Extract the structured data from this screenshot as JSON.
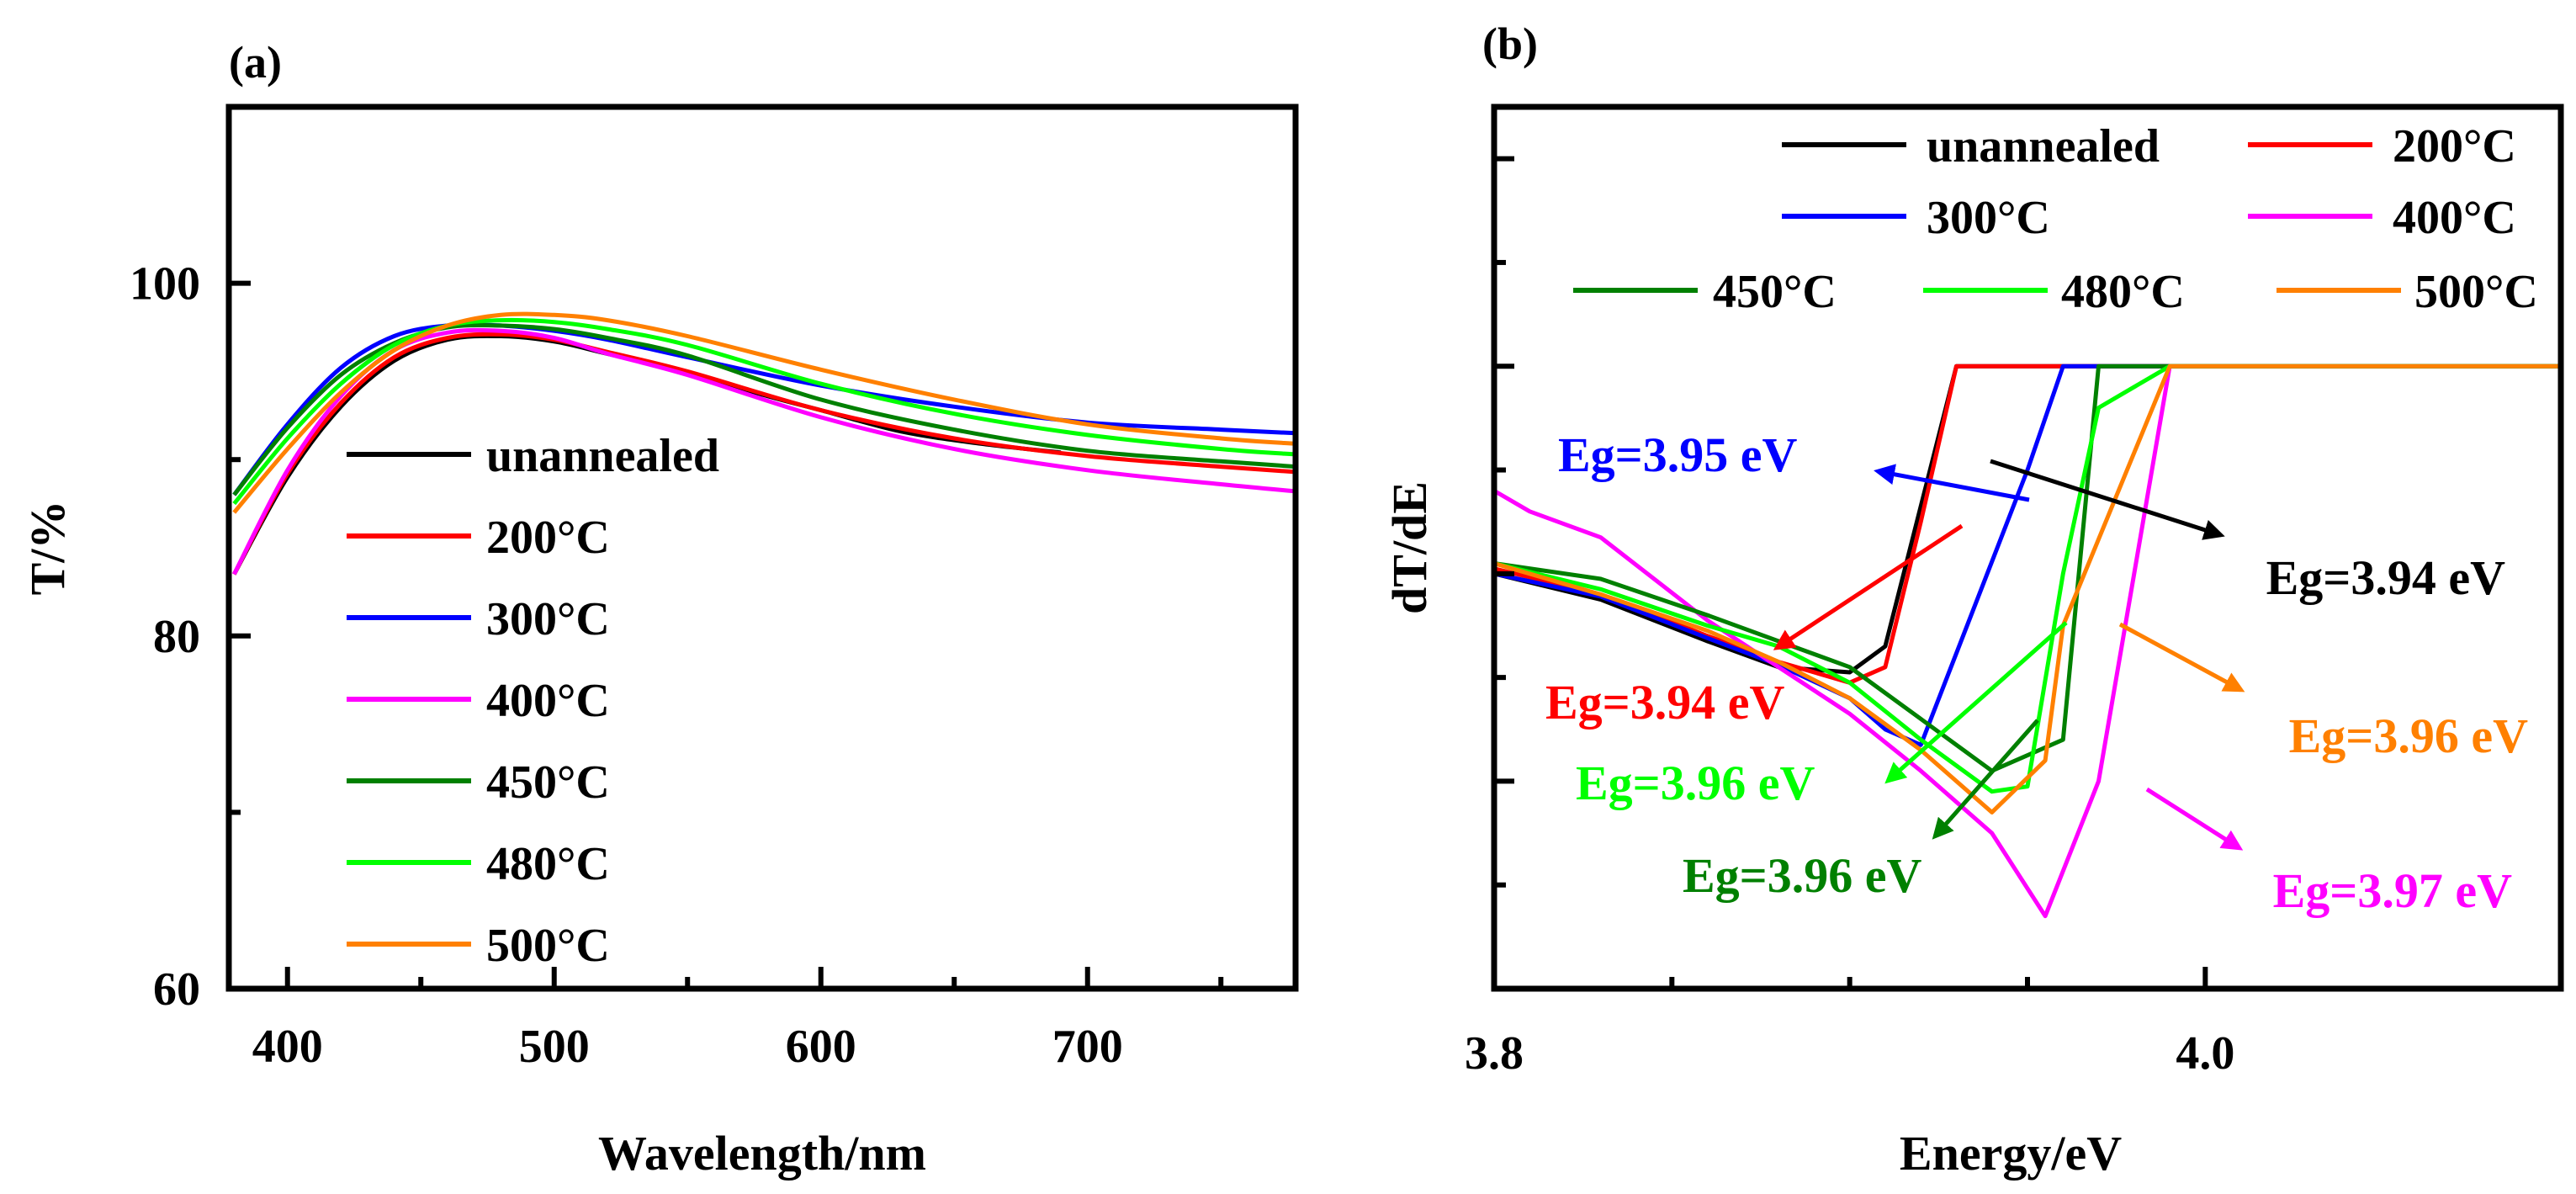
{
  "chart_data": [
    {
      "panel": "(a)",
      "type": "line",
      "xlabel": "Wavelength/nm",
      "ylabel": "T/%",
      "xlim": [
        378,
        778
      ],
      "ylim": [
        60,
        110
      ],
      "xticks": [
        400,
        500,
        600,
        700
      ],
      "xtick_labels": [
        "400",
        "500",
        "600",
        "700"
      ],
      "yticks": [
        60,
        80,
        100
      ],
      "ytick_labels": [
        "60",
        "80",
        "100"
      ],
      "legend_position": "bottom-left",
      "series": [
        {
          "name": "unannealed",
          "color": "#000000",
          "x": [
            380,
            400,
            420,
            440,
            460,
            480,
            500,
            520,
            550,
            580,
            600,
            630,
            660,
            690
          ],
          "y": [
            83.5,
            89.0,
            93.0,
            95.6,
            96.8,
            97.0,
            96.7,
            96.0,
            94.9,
            93.6,
            92.8,
            91.6,
            90.9,
            90.4
          ]
        },
        {
          "name": "200°C",
          "color": "#ff0000",
          "x": [
            380,
            400,
            420,
            440,
            460,
            480,
            500,
            520,
            550,
            600,
            650,
            700,
            750,
            778
          ],
          "y": [
            83.5,
            89.2,
            93.2,
            95.8,
            96.9,
            97.1,
            96.8,
            96.1,
            95.0,
            92.8,
            91.2,
            90.2,
            89.6,
            89.3
          ]
        },
        {
          "name": "300°C",
          "color": "#0000ff",
          "x": [
            380,
            400,
            420,
            440,
            460,
            480,
            500,
            520,
            550,
            600,
            650,
            700,
            750,
            778
          ],
          "y": [
            88.0,
            92.0,
            95.2,
            97.0,
            97.6,
            97.6,
            97.3,
            96.8,
            95.8,
            94.2,
            93.0,
            92.1,
            91.7,
            91.5
          ]
        },
        {
          "name": "400°C",
          "color": "#ff00ff",
          "x": [
            380,
            400,
            420,
            440,
            460,
            480,
            500,
            520,
            550,
            600,
            650,
            700,
            750,
            778
          ],
          "y": [
            83.5,
            89.4,
            93.6,
            96.2,
            97.2,
            97.3,
            96.9,
            96.0,
            94.8,
            92.4,
            90.6,
            89.4,
            88.6,
            88.2
          ]
        },
        {
          "name": "450°C",
          "color": "#008000",
          "x": [
            380,
            400,
            420,
            440,
            460,
            480,
            500,
            520,
            550,
            600,
            650,
            700,
            750,
            778
          ],
          "y": [
            88.0,
            91.8,
            94.8,
            96.6,
            97.5,
            97.6,
            97.4,
            96.9,
            95.9,
            93.4,
            91.7,
            90.5,
            89.9,
            89.6
          ]
        },
        {
          "name": "480°C",
          "color": "#00ff00",
          "x": [
            380,
            400,
            420,
            440,
            460,
            480,
            500,
            520,
            550,
            600,
            650,
            700,
            750,
            778
          ],
          "y": [
            87.5,
            91.2,
            94.3,
            96.5,
            97.6,
            97.9,
            97.8,
            97.4,
            96.5,
            94.3,
            92.6,
            91.4,
            90.6,
            90.3
          ]
        },
        {
          "name": "500°C",
          "color": "#ff8000",
          "x": [
            380,
            400,
            420,
            440,
            460,
            480,
            500,
            520,
            550,
            600,
            650,
            700,
            750,
            778
          ],
          "y": [
            87.0,
            90.6,
            93.8,
            96.2,
            97.6,
            98.2,
            98.2,
            97.9,
            97.0,
            95.1,
            93.4,
            92.0,
            91.2,
            90.9
          ]
        }
      ]
    },
    {
      "panel": "(b)",
      "type": "line",
      "xlabel": "Energy/eV",
      "ylabel": "dT/dE",
      "xlim": [
        3.8,
        4.1
      ],
      "ylim": [
        0,
        8.5
      ],
      "xticks": [
        3.8,
        4.0
      ],
      "xtick_labels": [
        "3.8",
        "4.0"
      ],
      "legend_position": "top-right",
      "series": [
        {
          "name": "unannealed",
          "color": "#000000",
          "x": [
            3.8,
            3.83,
            3.86,
            3.88,
            3.9,
            3.91,
            3.93,
            3.95,
            4.1
          ],
          "y": [
            4.0,
            3.75,
            3.35,
            3.1,
            3.05,
            3.3,
            6.0,
            6.0,
            6.0
          ]
        },
        {
          "name": "200°C",
          "color": "#ff0000",
          "x": [
            3.8,
            3.83,
            3.86,
            3.88,
            3.9,
            3.91,
            3.92,
            3.93,
            3.95,
            4.1
          ],
          "y": [
            4.05,
            3.8,
            3.4,
            3.15,
            2.95,
            3.1,
            4.5,
            6.0,
            6.0,
            6.0
          ]
        },
        {
          "name": "300°C",
          "color": "#0000ff",
          "x": [
            3.8,
            3.83,
            3.86,
            3.88,
            3.9,
            3.91,
            3.92,
            3.95,
            3.96,
            4.1
          ],
          "y": [
            4.0,
            3.78,
            3.38,
            3.12,
            2.8,
            2.5,
            2.35,
            5.0,
            6.0,
            6.0
          ]
        },
        {
          "name": "400°C",
          "color": "#ff00ff",
          "x": [
            3.8,
            3.81,
            3.83,
            3.86,
            3.88,
            3.9,
            3.92,
            3.94,
            3.955,
            3.97,
            3.99,
            4.1
          ],
          "y": [
            4.8,
            4.6,
            4.35,
            3.55,
            3.1,
            2.65,
            2.1,
            1.5,
            0.7,
            2.0,
            6.0,
            6.0
          ]
        },
        {
          "name": "450°C",
          "color": "#008000",
          "x": [
            3.8,
            3.83,
            3.86,
            3.88,
            3.9,
            3.92,
            3.94,
            3.96,
            3.97,
            3.99,
            4.1
          ],
          "y": [
            4.1,
            3.95,
            3.6,
            3.35,
            3.1,
            2.6,
            2.1,
            2.4,
            6.0,
            6.0,
            6.0
          ]
        },
        {
          "name": "480°C",
          "color": "#00ff00",
          "x": [
            3.8,
            3.83,
            3.86,
            3.88,
            3.9,
            3.92,
            3.94,
            3.95,
            3.96,
            3.97,
            3.99,
            4.1
          ],
          "y": [
            4.1,
            3.85,
            3.5,
            3.3,
            2.95,
            2.4,
            1.9,
            1.95,
            4.0,
            5.6,
            6.0,
            6.0
          ]
        },
        {
          "name": "500°C",
          "color": "#ff8000",
          "x": [
            3.8,
            3.83,
            3.86,
            3.88,
            3.9,
            3.92,
            3.94,
            3.955,
            3.96,
            3.99,
            4.1
          ],
          "y": [
            4.1,
            3.8,
            3.45,
            3.15,
            2.8,
            2.3,
            1.7,
            2.2,
            3.5,
            6.0,
            6.0
          ]
        }
      ],
      "annotations": [
        {
          "text": "Eg=3.95 eV",
          "color": "#0000ff",
          "series": "300°C"
        },
        {
          "text": "Eg=3.94 eV",
          "color": "#000000",
          "series": "unannealed"
        },
        {
          "text": "Eg=3.94 eV",
          "color": "#ff0000",
          "series": "200°C"
        },
        {
          "text": "Eg=3.96 eV",
          "color": "#ff8000",
          "series": "500°C"
        },
        {
          "text": "Eg=3.96 eV",
          "color": "#00ff00",
          "series": "480°C"
        },
        {
          "text": "Eg=3.96 eV",
          "color": "#008000",
          "series": "450°C"
        },
        {
          "text": "Eg=3.97 eV",
          "color": "#ff00ff",
          "series": "400°C"
        }
      ]
    }
  ]
}
